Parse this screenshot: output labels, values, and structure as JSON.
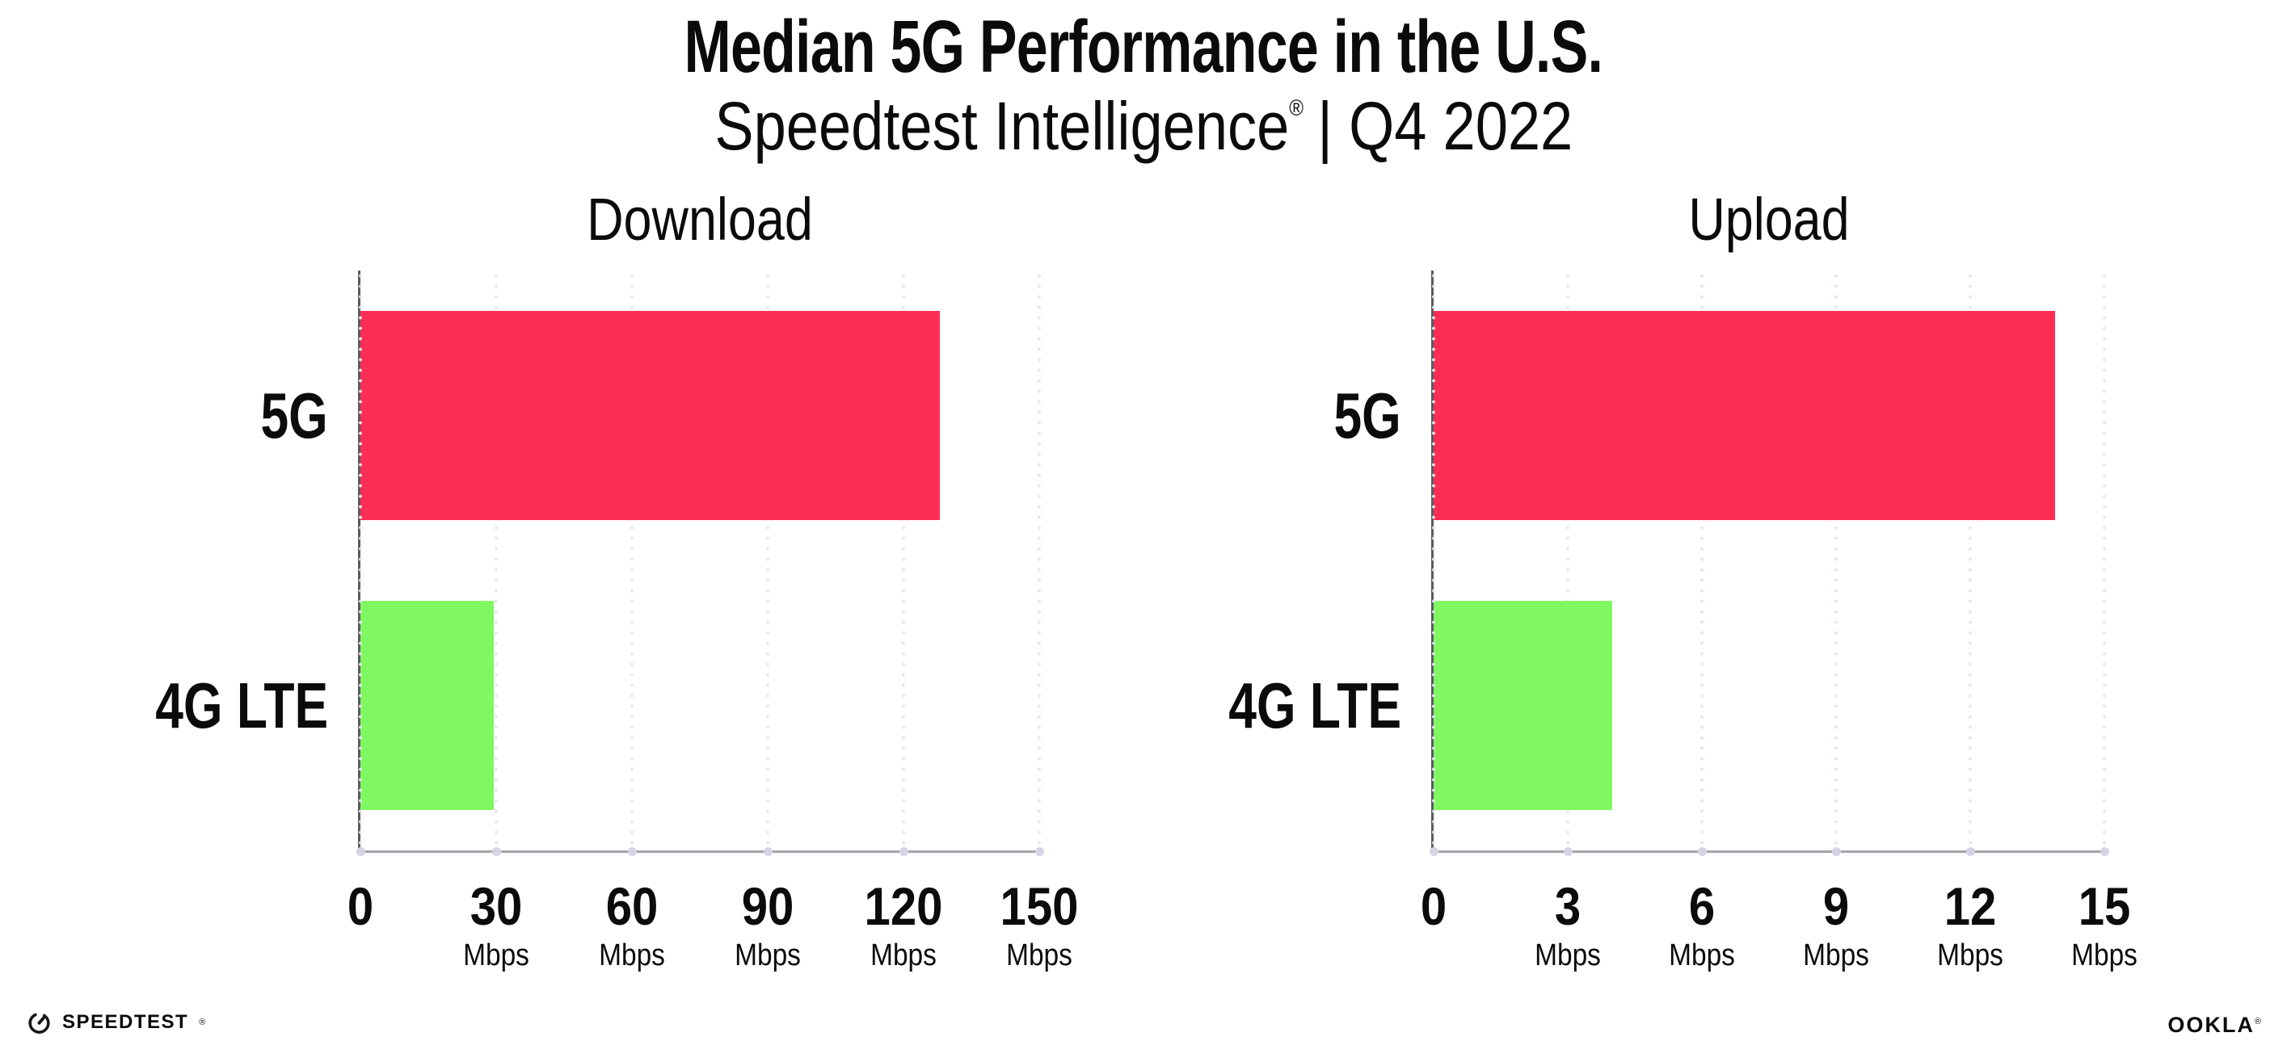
{
  "header": {
    "title": "Median 5G Performance in the U.S.",
    "subtitle_brand": "Speedtest Intelligence",
    "subtitle_mark": "®",
    "subtitle_rest": "| Q4 2022"
  },
  "footer": {
    "speedtest_label": "SPEEDTEST",
    "speedtest_mark": "®",
    "gauge_icon": "speedtest-gauge-icon",
    "ookla_label": "OOKLA",
    "ookla_mark": "®"
  },
  "colors": {
    "bar_5g": "#FE2D56",
    "bar_4g_lte": "#80F862",
    "grid_dots": "#E6E5F1",
    "x_axis": "#A4A4AC",
    "y_axis": "#5A5A64",
    "axis_tick_dot": "#D5D3E4",
    "text": "#0B0B0B",
    "background": "#FFFFFF"
  },
  "chart_data": [
    {
      "type": "bar",
      "orientation": "horizontal",
      "title": "Download",
      "categories": [
        "5G",
        "4G LTE"
      ],
      "values": [
        128,
        29.5
      ],
      "unit": "Mbps",
      "xlim": [
        0,
        150
      ],
      "xticks": [
        0,
        30,
        60,
        90,
        120,
        150
      ],
      "series_colors": [
        "#FE2D56",
        "#80F862"
      ],
      "grid": "dotted-vertical",
      "legend": "none"
    },
    {
      "type": "bar",
      "orientation": "horizontal",
      "title": "Upload",
      "categories": [
        "5G",
        "4G LTE"
      ],
      "values": [
        13.9,
        4
      ],
      "unit": "Mbps",
      "xlim": [
        0,
        15
      ],
      "xticks": [
        0,
        3,
        6,
        9,
        12,
        15
      ],
      "series_colors": [
        "#FE2D56",
        "#80F862"
      ],
      "grid": "dotted-vertical",
      "legend": "none"
    }
  ]
}
